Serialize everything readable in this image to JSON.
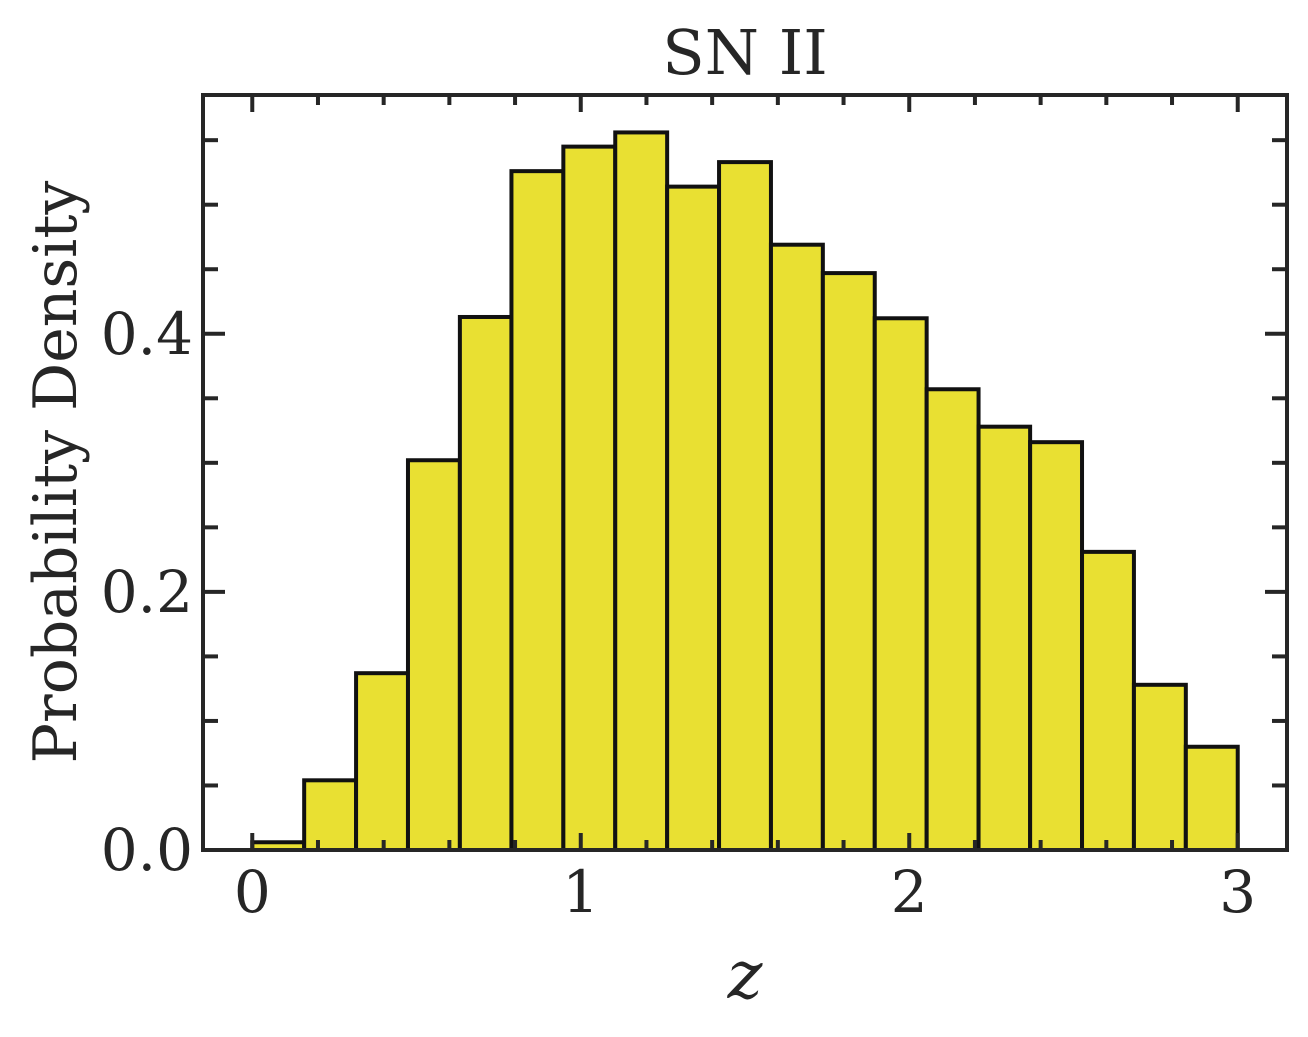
{
  "chart_data": {
    "type": "bar",
    "title": "SN II",
    "xlabel": "z",
    "ylabel": "Probability Density",
    "xlim": [
      -0.15,
      3.15
    ],
    "ylim": [
      0,
      0.585
    ],
    "bar_color": "#e9e032",
    "edge_color": "#111111",
    "bin_edges": [
      0.0,
      0.158,
      0.316,
      0.474,
      0.632,
      0.789,
      0.947,
      1.105,
      1.263,
      1.421,
      1.579,
      1.737,
      1.895,
      2.053,
      2.211,
      2.368,
      2.526,
      2.684,
      2.842,
      3.0
    ],
    "values": [
      0.006,
      0.054,
      0.137,
      0.302,
      0.413,
      0.526,
      0.545,
      0.556,
      0.514,
      0.533,
      0.469,
      0.447,
      0.412,
      0.357,
      0.328,
      0.316,
      0.231,
      0.128,
      0.08
    ],
    "x_ticks": [
      {
        "value": 0,
        "label": "0"
      },
      {
        "value": 1,
        "label": "1"
      },
      {
        "value": 2,
        "label": "2"
      },
      {
        "value": 3,
        "label": "3"
      }
    ],
    "y_ticks": [
      {
        "value": 0.0,
        "label": "0.0"
      },
      {
        "value": 0.2,
        "label": "0.2"
      },
      {
        "value": 0.4,
        "label": "0.4"
      }
    ],
    "x_minor_step": 0.2,
    "y_minor_step": 0.05,
    "grid": false,
    "legend": "none"
  }
}
